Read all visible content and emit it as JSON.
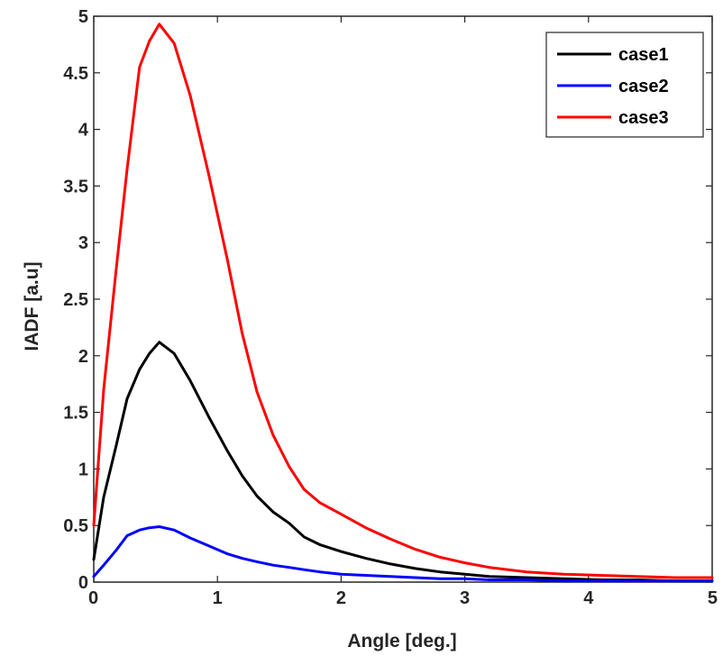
{
  "chart_data": {
    "type": "line",
    "title": "",
    "xlabel": "Angle [deg.]",
    "ylabel": "IADF [a.u]",
    "xlim": [
      0,
      5
    ],
    "ylim": [
      0,
      5
    ],
    "xticks": [
      0,
      1,
      2,
      3,
      4,
      5
    ],
    "xtick_labels": [
      "0",
      "1",
      "2",
      "3",
      "4",
      "5"
    ],
    "yticks": [
      0,
      0.5,
      1,
      1.5,
      2,
      2.5,
      3,
      3.5,
      4,
      4.5,
      5
    ],
    "ytick_labels": [
      "0",
      "0.5",
      "1",
      "1.5",
      "2",
      "2.5",
      "3",
      "3.5",
      "4",
      "4.5",
      "5"
    ],
    "grid": false,
    "legend_position": "top-right",
    "x": [
      0,
      0.08,
      0.18,
      0.27,
      0.37,
      0.45,
      0.53,
      0.65,
      0.78,
      0.93,
      1.08,
      1.2,
      1.32,
      1.45,
      1.58,
      1.7,
      1.83,
      2.0,
      2.2,
      2.4,
      2.6,
      2.8,
      3.0,
      3.2,
      3.5,
      3.8,
      4.1,
      4.4,
      4.7,
      5.0
    ],
    "series": [
      {
        "name": "case1",
        "color": "#000000",
        "values": [
          0.2,
          0.75,
          1.2,
          1.62,
          1.88,
          2.02,
          2.12,
          2.02,
          1.78,
          1.46,
          1.16,
          0.94,
          0.76,
          0.62,
          0.52,
          0.4,
          0.33,
          0.27,
          0.21,
          0.16,
          0.12,
          0.09,
          0.07,
          0.05,
          0.04,
          0.03,
          0.02,
          0.02,
          0.01,
          0.01
        ]
      },
      {
        "name": "case2",
        "color": "#0000ff",
        "values": [
          0.05,
          0.15,
          0.28,
          0.41,
          0.46,
          0.48,
          0.49,
          0.46,
          0.39,
          0.32,
          0.25,
          0.21,
          0.18,
          0.15,
          0.13,
          0.11,
          0.09,
          0.07,
          0.06,
          0.05,
          0.04,
          0.03,
          0.03,
          0.02,
          0.02,
          0.01,
          0.01,
          0.01,
          0.01,
          0.01
        ]
      },
      {
        "name": "case3",
        "color": "#ff0000",
        "values": [
          0.5,
          1.7,
          2.75,
          3.65,
          4.55,
          4.78,
          4.93,
          4.76,
          4.3,
          3.6,
          2.85,
          2.2,
          1.68,
          1.3,
          1.02,
          0.82,
          0.7,
          0.6,
          0.48,
          0.38,
          0.29,
          0.22,
          0.17,
          0.13,
          0.09,
          0.07,
          0.06,
          0.05,
          0.04,
          0.04
        ]
      }
    ]
  }
}
